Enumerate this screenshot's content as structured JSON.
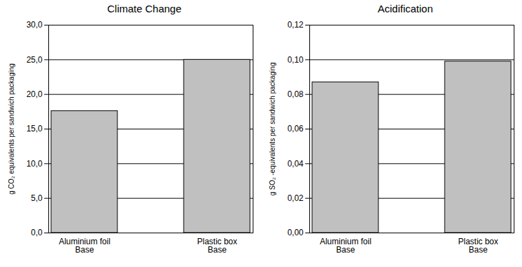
{
  "chart_data": [
    {
      "type": "bar",
      "title": "Climate Change",
      "y_label": "g CO₂ equivalents per sandwich packaging",
      "categories": [
        "Aluminium foil Base",
        "Plastic box Base"
      ],
      "values": [
        17.6,
        25.0
      ],
      "color": "#c0c0c0",
      "ylim": [
        0,
        30
      ],
      "yticks": [
        {
          "value": 0,
          "label": "0,0"
        },
        {
          "value": 5,
          "label": "5,0"
        },
        {
          "value": 10,
          "label": "10,0"
        },
        {
          "value": 15,
          "label": "15,0"
        },
        {
          "value": 20,
          "label": "20,0"
        },
        {
          "value": 25,
          "label": "25,0"
        },
        {
          "value": 30,
          "label": "30,0"
        }
      ],
      "grid": true
    },
    {
      "type": "bar",
      "title": "Acidification",
      "y_label": "g SO₂ -equivalents per sandwich packaging",
      "categories": [
        "Aluminium foil Base",
        "Plastic box Base"
      ],
      "values": [
        0.087,
        0.099
      ],
      "color": "#c0c0c0",
      "ylim": [
        0,
        0.12
      ],
      "yticks": [
        {
          "value": 0,
          "label": "0,00"
        },
        {
          "value": 0.02,
          "label": "0,02"
        },
        {
          "value": 0.04,
          "label": "0,04"
        },
        {
          "value": 0.06,
          "label": "0,06"
        },
        {
          "value": 0.08,
          "label": "0,08"
        },
        {
          "value": 0.1,
          "label": "0,10"
        },
        {
          "value": 0.12,
          "label": "0,12"
        }
      ],
      "grid": true
    }
  ]
}
